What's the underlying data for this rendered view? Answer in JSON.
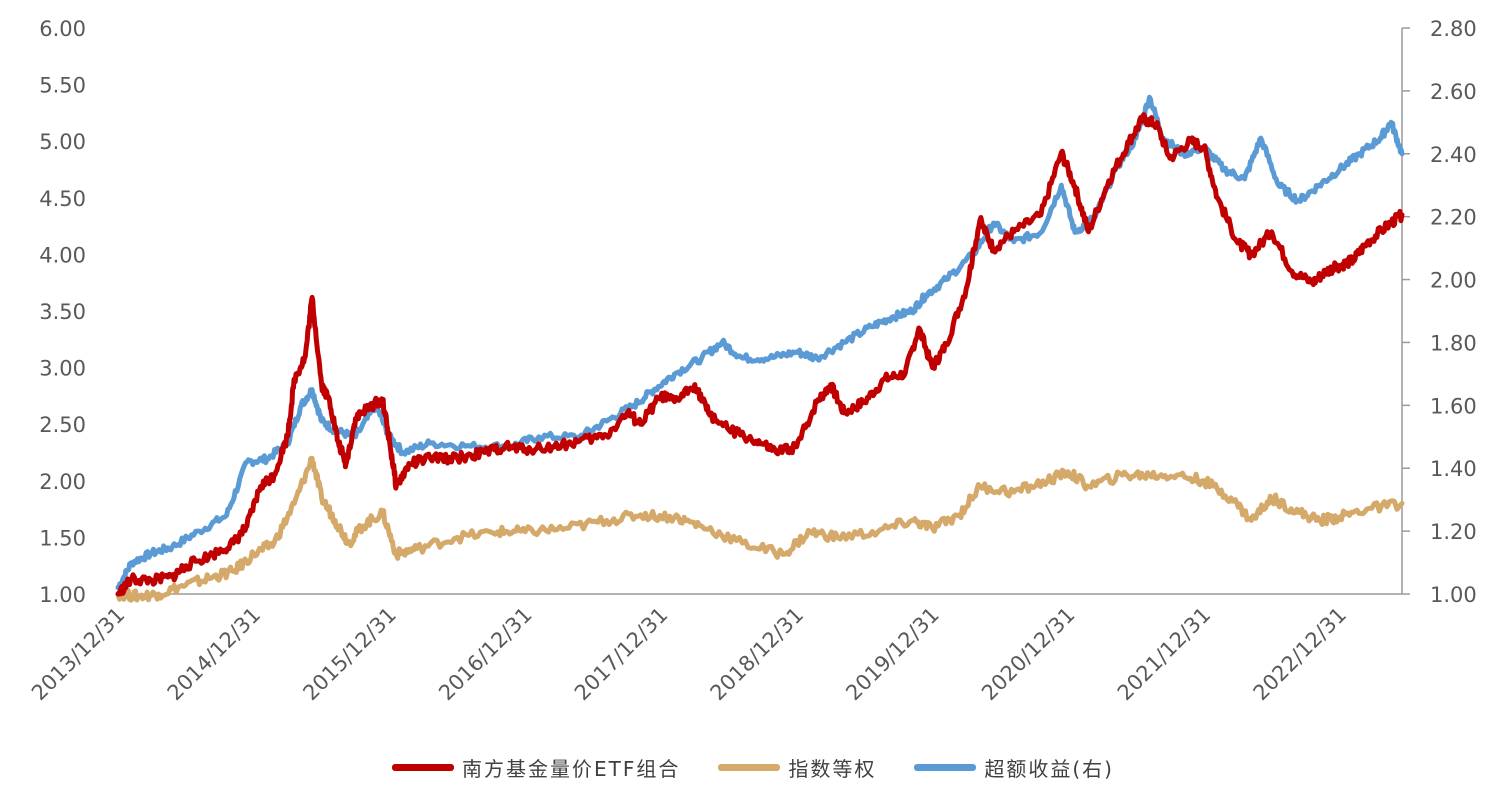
{
  "chart_data": {
    "type": "line",
    "x_ticks": [
      "2013/12/31",
      "2014/12/31",
      "2015/12/31",
      "2016/12/31",
      "2017/12/31",
      "2018/12/31",
      "2019/12/31",
      "2020/12/31",
      "2021/12/31",
      "2022/12/31"
    ],
    "x_range": [
      2014.0,
      2023.46
    ],
    "left_axis": {
      "ylim": [
        1.0,
        6.0
      ],
      "ticks": [
        "1.00",
        "1.50",
        "2.00",
        "2.50",
        "3.00",
        "3.50",
        "4.00",
        "4.50",
        "5.00",
        "5.50",
        "6.00"
      ]
    },
    "right_axis": {
      "ylim": [
        1.0,
        2.8
      ],
      "ticks": [
        "1.00",
        "1.20",
        "1.40",
        "1.60",
        "1.80",
        "2.00",
        "2.20",
        "2.40",
        "2.60",
        "2.80"
      ]
    },
    "grid": false,
    "legend_position": "bottom",
    "series": [
      {
        "name": "南方基金量价ETF组合",
        "axis": "left",
        "color": "#C00000",
        "points": [
          [
            2014.0,
            1.0
          ],
          [
            2014.1,
            1.13
          ],
          [
            2014.25,
            1.12
          ],
          [
            2014.4,
            1.15
          ],
          [
            2014.5,
            1.25
          ],
          [
            2014.7,
            1.35
          ],
          [
            2014.85,
            1.45
          ],
          [
            2014.95,
            1.6
          ],
          [
            2015.05,
            1.95
          ],
          [
            2015.15,
            2.05
          ],
          [
            2015.25,
            2.4
          ],
          [
            2015.3,
            2.9
          ],
          [
            2015.38,
            3.1
          ],
          [
            2015.43,
            3.62
          ],
          [
            2015.5,
            2.85
          ],
          [
            2015.56,
            2.7
          ],
          [
            2015.62,
            2.35
          ],
          [
            2015.68,
            2.15
          ],
          [
            2015.75,
            2.55
          ],
          [
            2015.85,
            2.65
          ],
          [
            2015.95,
            2.72
          ],
          [
            2016.0,
            2.35
          ],
          [
            2016.05,
            1.95
          ],
          [
            2016.15,
            2.15
          ],
          [
            2016.3,
            2.2
          ],
          [
            2016.5,
            2.2
          ],
          [
            2016.7,
            2.25
          ],
          [
            2016.85,
            2.3
          ],
          [
            2017.0,
            2.28
          ],
          [
            2017.2,
            2.3
          ],
          [
            2017.4,
            2.35
          ],
          [
            2017.6,
            2.4
          ],
          [
            2017.75,
            2.6
          ],
          [
            2017.85,
            2.5
          ],
          [
            2018.0,
            2.75
          ],
          [
            2018.1,
            2.7
          ],
          [
            2018.25,
            2.85
          ],
          [
            2018.35,
            2.6
          ],
          [
            2018.5,
            2.45
          ],
          [
            2018.7,
            2.35
          ],
          [
            2018.85,
            2.25
          ],
          [
            2019.0,
            2.3
          ],
          [
            2019.15,
            2.7
          ],
          [
            2019.25,
            2.85
          ],
          [
            2019.35,
            2.6
          ],
          [
            2019.5,
            2.7
          ],
          [
            2019.65,
            2.9
          ],
          [
            2019.8,
            2.95
          ],
          [
            2019.9,
            3.35
          ],
          [
            2020.0,
            3.0
          ],
          [
            2020.1,
            3.2
          ],
          [
            2020.25,
            3.7
          ],
          [
            2020.35,
            4.3
          ],
          [
            2020.45,
            4.05
          ],
          [
            2020.6,
            4.2
          ],
          [
            2020.8,
            4.35
          ],
          [
            2020.95,
            4.9
          ],
          [
            2021.05,
            4.6
          ],
          [
            2021.15,
            4.2
          ],
          [
            2021.3,
            4.65
          ],
          [
            2021.45,
            5.0
          ],
          [
            2021.55,
            5.2
          ],
          [
            2021.65,
            5.15
          ],
          [
            2021.75,
            4.85
          ],
          [
            2021.9,
            5.0
          ],
          [
            2022.0,
            4.95
          ],
          [
            2022.1,
            4.5
          ],
          [
            2022.25,
            4.1
          ],
          [
            2022.35,
            4.0
          ],
          [
            2022.5,
            4.2
          ],
          [
            2022.65,
            3.85
          ],
          [
            2022.8,
            3.75
          ],
          [
            2022.9,
            3.85
          ],
          [
            2023.0,
            3.9
          ],
          [
            2023.1,
            3.95
          ],
          [
            2023.2,
            4.1
          ],
          [
            2023.35,
            4.25
          ],
          [
            2023.46,
            4.35
          ]
        ]
      },
      {
        "name": "指数等权",
        "axis": "left",
        "color": "#D4A96A",
        "points": [
          [
            2014.0,
            1.0
          ],
          [
            2014.15,
            0.98
          ],
          [
            2014.3,
            1.0
          ],
          [
            2014.5,
            1.08
          ],
          [
            2014.7,
            1.15
          ],
          [
            2014.85,
            1.2
          ],
          [
            2015.0,
            1.35
          ],
          [
            2015.15,
            1.45
          ],
          [
            2015.3,
            1.8
          ],
          [
            2015.43,
            2.2
          ],
          [
            2015.5,
            1.85
          ],
          [
            2015.6,
            1.65
          ],
          [
            2015.7,
            1.45
          ],
          [
            2015.8,
            1.6
          ],
          [
            2015.95,
            1.72
          ],
          [
            2016.05,
            1.35
          ],
          [
            2016.2,
            1.4
          ],
          [
            2016.5,
            1.5
          ],
          [
            2016.8,
            1.55
          ],
          [
            2017.0,
            1.55
          ],
          [
            2017.3,
            1.58
          ],
          [
            2017.6,
            1.65
          ],
          [
            2017.85,
            1.7
          ],
          [
            2018.1,
            1.68
          ],
          [
            2018.3,
            1.6
          ],
          [
            2018.6,
            1.45
          ],
          [
            2018.9,
            1.35
          ],
          [
            2019.1,
            1.55
          ],
          [
            2019.3,
            1.5
          ],
          [
            2019.6,
            1.55
          ],
          [
            2019.85,
            1.65
          ],
          [
            2020.0,
            1.58
          ],
          [
            2020.2,
            1.7
          ],
          [
            2020.35,
            1.95
          ],
          [
            2020.6,
            1.9
          ],
          [
            2020.85,
            2.0
          ],
          [
            2021.0,
            2.08
          ],
          [
            2021.15,
            1.95
          ],
          [
            2021.4,
            2.05
          ],
          [
            2021.6,
            2.05
          ],
          [
            2021.8,
            2.05
          ],
          [
            2022.0,
            2.0
          ],
          [
            2022.2,
            1.85
          ],
          [
            2022.35,
            1.65
          ],
          [
            2022.5,
            1.85
          ],
          [
            2022.7,
            1.72
          ],
          [
            2022.85,
            1.65
          ],
          [
            2023.0,
            1.68
          ],
          [
            2023.2,
            1.75
          ],
          [
            2023.46,
            1.8
          ]
        ]
      },
      {
        "name": "超额收益(右)",
        "axis": "right",
        "color": "#5B9BD5",
        "points": [
          [
            2014.0,
            1.02
          ],
          [
            2014.1,
            1.1
          ],
          [
            2014.25,
            1.13
          ],
          [
            2014.4,
            1.15
          ],
          [
            2014.6,
            1.2
          ],
          [
            2014.8,
            1.25
          ],
          [
            2014.95,
            1.42
          ],
          [
            2015.1,
            1.43
          ],
          [
            2015.25,
            1.48
          ],
          [
            2015.35,
            1.6
          ],
          [
            2015.43,
            1.65
          ],
          [
            2015.5,
            1.55
          ],
          [
            2015.6,
            1.52
          ],
          [
            2015.75,
            1.5
          ],
          [
            2015.9,
            1.6
          ],
          [
            2016.0,
            1.5
          ],
          [
            2016.1,
            1.45
          ],
          [
            2016.3,
            1.48
          ],
          [
            2016.6,
            1.47
          ],
          [
            2016.9,
            1.47
          ],
          [
            2017.1,
            1.5
          ],
          [
            2017.4,
            1.5
          ],
          [
            2017.6,
            1.55
          ],
          [
            2017.8,
            1.6
          ],
          [
            2017.95,
            1.65
          ],
          [
            2018.1,
            1.7
          ],
          [
            2018.3,
            1.75
          ],
          [
            2018.45,
            1.8
          ],
          [
            2018.6,
            1.75
          ],
          [
            2018.8,
            1.75
          ],
          [
            2019.0,
            1.77
          ],
          [
            2019.15,
            1.75
          ],
          [
            2019.35,
            1.8
          ],
          [
            2019.55,
            1.85
          ],
          [
            2019.7,
            1.88
          ],
          [
            2019.85,
            1.9
          ],
          [
            2019.95,
            1.95
          ],
          [
            2020.1,
            2.0
          ],
          [
            2020.3,
            2.08
          ],
          [
            2020.45,
            2.18
          ],
          [
            2020.6,
            2.12
          ],
          [
            2020.8,
            2.15
          ],
          [
            2020.95,
            2.3
          ],
          [
            2021.05,
            2.15
          ],
          [
            2021.2,
            2.2
          ],
          [
            2021.35,
            2.35
          ],
          [
            2021.5,
            2.45
          ],
          [
            2021.6,
            2.58
          ],
          [
            2021.7,
            2.45
          ],
          [
            2021.85,
            2.4
          ],
          [
            2022.0,
            2.42
          ],
          [
            2022.15,
            2.35
          ],
          [
            2022.3,
            2.32
          ],
          [
            2022.42,
            2.45
          ],
          [
            2022.55,
            2.3
          ],
          [
            2022.7,
            2.25
          ],
          [
            2022.85,
            2.3
          ],
          [
            2023.0,
            2.35
          ],
          [
            2023.15,
            2.4
          ],
          [
            2023.3,
            2.45
          ],
          [
            2023.38,
            2.5
          ],
          [
            2023.46,
            2.4
          ]
        ]
      }
    ]
  },
  "legend": [
    {
      "label": "南方基金量价ETF组合",
      "color": "#C00000"
    },
    {
      "label": "指数等权",
      "color": "#D4A96A"
    },
    {
      "label": "超额收益(右)",
      "color": "#5B9BD5"
    }
  ]
}
